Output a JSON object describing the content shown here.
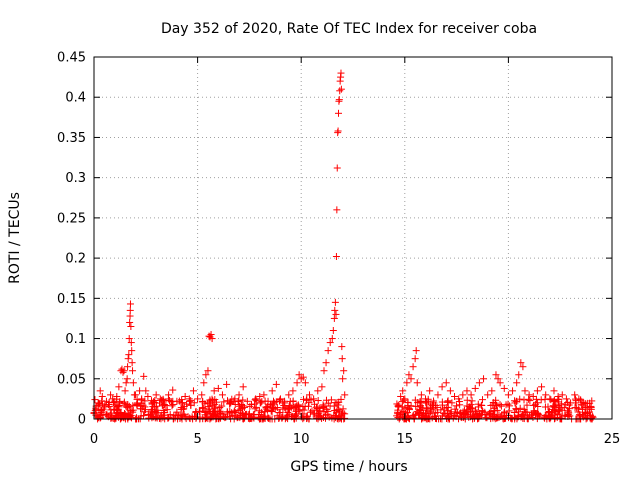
{
  "chart_data": {
    "type": "scatter",
    "title": "Day 352 of 2020, Rate Of TEC Index for receiver coba",
    "xlabel": "GPS time / hours",
    "ylabel": "ROTI / TECUs",
    "xlim": [
      0,
      25
    ],
    "ylim": [
      0,
      0.45
    ],
    "xticks": [
      0,
      5,
      10,
      15,
      20,
      25
    ],
    "yticks": [
      0,
      0.05,
      0.1,
      0.15,
      0.2,
      0.25,
      0.3,
      0.35,
      0.4,
      0.45
    ],
    "xtick_labels": [
      "0",
      "5",
      "10",
      "15",
      "20",
      "25"
    ],
    "ytick_labels": [
      "0",
      "0.05",
      "0.1",
      "0.15",
      "0.2",
      "0.25",
      "0.3",
      "0.35",
      "0.4",
      "0.45"
    ],
    "grid": true,
    "marker": "+",
    "color": "#ff0000",
    "series": [
      {
        "name": "ROTI",
        "points": [
          [
            0.1,
            0.012
          ],
          [
            0.2,
            0.02
          ],
          [
            0.3,
            0.035
          ],
          [
            0.4,
            0.028
          ],
          [
            0.5,
            0.015
          ],
          [
            0.6,
            0.022
          ],
          [
            0.7,
            0.018
          ],
          [
            0.8,
            0.03
          ],
          [
            0.9,
            0.025
          ],
          [
            1.0,
            0.012
          ],
          [
            1.1,
            0.028
          ],
          [
            1.2,
            0.04
          ],
          [
            1.3,
            0.06
          ],
          [
            1.35,
            0.062
          ],
          [
            1.4,
            0.058
          ],
          [
            1.45,
            0.06
          ],
          [
            1.5,
            0.035
          ],
          [
            1.55,
            0.045
          ],
          [
            1.6,
            0.05
          ],
          [
            1.62,
            0.065
          ],
          [
            1.65,
            0.075
          ],
          [
            1.68,
            0.08
          ],
          [
            1.7,
            0.1
          ],
          [
            1.72,
            0.12
          ],
          [
            1.74,
            0.128
          ],
          [
            1.75,
            0.135
          ],
          [
            1.76,
            0.143
          ],
          [
            1.78,
            0.115
          ],
          [
            1.8,
            0.095
          ],
          [
            1.82,
            0.085
          ],
          [
            1.84,
            0.07
          ],
          [
            1.86,
            0.06
          ],
          [
            1.9,
            0.045
          ],
          [
            1.95,
            0.03
          ],
          [
            2.0,
            0.03
          ],
          [
            2.1,
            0.02
          ],
          [
            2.2,
            0.035
          ],
          [
            2.3,
            0.025
          ],
          [
            2.4,
            0.053
          ],
          [
            2.5,
            0.035
          ],
          [
            2.6,
            0.028
          ],
          [
            2.8,
            0.02
          ],
          [
            3.0,
            0.03
          ],
          [
            3.2,
            0.025
          ],
          [
            3.4,
            0.018
          ],
          [
            3.6,
            0.03
          ],
          [
            3.8,
            0.036
          ],
          [
            4.0,
            0.022
          ],
          [
            4.2,
            0.02
          ],
          [
            4.4,
            0.028
          ],
          [
            4.6,
            0.025
          ],
          [
            4.8,
            0.035
          ],
          [
            5.0,
            0.025
          ],
          [
            5.2,
            0.03
          ],
          [
            5.3,
            0.045
          ],
          [
            5.4,
            0.055
          ],
          [
            5.5,
            0.06
          ],
          [
            5.55,
            0.103
          ],
          [
            5.6,
            0.102
          ],
          [
            5.65,
            0.105
          ],
          [
            5.7,
            0.1
          ],
          [
            5.8,
            0.035
          ],
          [
            6.0,
            0.038
          ],
          [
            6.2,
            0.03
          ],
          [
            6.4,
            0.043
          ],
          [
            6.6,
            0.02
          ],
          [
            6.8,
            0.025
          ],
          [
            7.0,
            0.03
          ],
          [
            7.2,
            0.04
          ],
          [
            7.4,
            0.022
          ],
          [
            7.6,
            0.018
          ],
          [
            7.8,
            0.025
          ],
          [
            8.0,
            0.028
          ],
          [
            8.2,
            0.03
          ],
          [
            8.4,
            0.022
          ],
          [
            8.6,
            0.035
          ],
          [
            8.8,
            0.043
          ],
          [
            9.0,
            0.025
          ],
          [
            9.2,
            0.02
          ],
          [
            9.4,
            0.03
          ],
          [
            9.6,
            0.035
          ],
          [
            9.8,
            0.045
          ],
          [
            9.9,
            0.055
          ],
          [
            10.0,
            0.05
          ],
          [
            10.1,
            0.052
          ],
          [
            10.2,
            0.045
          ],
          [
            10.4,
            0.03
          ],
          [
            10.6,
            0.025
          ],
          [
            10.8,
            0.035
          ],
          [
            11.0,
            0.04
          ],
          [
            11.1,
            0.06
          ],
          [
            11.2,
            0.07
          ],
          [
            11.3,
            0.085
          ],
          [
            11.4,
            0.095
          ],
          [
            11.5,
            0.1
          ],
          [
            11.55,
            0.11
          ],
          [
            11.6,
            0.125
          ],
          [
            11.62,
            0.135
          ],
          [
            11.65,
            0.145
          ],
          [
            11.68,
            0.13
          ],
          [
            11.7,
            0.202
          ],
          [
            11.72,
            0.26
          ],
          [
            11.74,
            0.312
          ],
          [
            11.76,
            0.356
          ],
          [
            11.78,
            0.358
          ],
          [
            11.8,
            0.38
          ],
          [
            11.82,
            0.395
          ],
          [
            11.84,
            0.397
          ],
          [
            11.86,
            0.408
          ],
          [
            11.88,
            0.42
          ],
          [
            11.9,
            0.425
          ],
          [
            11.92,
            0.43
          ],
          [
            11.94,
            0.41
          ],
          [
            11.96,
            0.09
          ],
          [
            11.98,
            0.075
          ],
          [
            12.0,
            0.05
          ],
          [
            12.05,
            0.06
          ],
          [
            12.1,
            0.03
          ],
          [
            14.7,
            0.015
          ],
          [
            14.8,
            0.028
          ],
          [
            14.9,
            0.035
          ],
          [
            15.0,
            0.025
          ],
          [
            15.1,
            0.045
          ],
          [
            15.2,
            0.055
          ],
          [
            15.3,
            0.05
          ],
          [
            15.4,
            0.065
          ],
          [
            15.5,
            0.075
          ],
          [
            15.55,
            0.085
          ],
          [
            15.6,
            0.045
          ],
          [
            15.8,
            0.03
          ],
          [
            16.0,
            0.025
          ],
          [
            16.2,
            0.035
          ],
          [
            16.4,
            0.02
          ],
          [
            16.6,
            0.03
          ],
          [
            16.8,
            0.04
          ],
          [
            17.0,
            0.045
          ],
          [
            17.2,
            0.035
          ],
          [
            17.4,
            0.028
          ],
          [
            17.6,
            0.025
          ],
          [
            17.8,
            0.03
          ],
          [
            18.0,
            0.035
          ],
          [
            18.2,
            0.03
          ],
          [
            18.4,
            0.038
          ],
          [
            18.6,
            0.045
          ],
          [
            18.8,
            0.05
          ],
          [
            19.0,
            0.03
          ],
          [
            19.2,
            0.035
          ],
          [
            19.4,
            0.055
          ],
          [
            19.5,
            0.05
          ],
          [
            19.6,
            0.045
          ],
          [
            19.8,
            0.038
          ],
          [
            20.0,
            0.03
          ],
          [
            20.2,
            0.035
          ],
          [
            20.4,
            0.045
          ],
          [
            20.5,
            0.055
          ],
          [
            20.6,
            0.07
          ],
          [
            20.7,
            0.065
          ],
          [
            20.8,
            0.035
          ],
          [
            21.0,
            0.03
          ],
          [
            21.2,
            0.028
          ],
          [
            21.4,
            0.035
          ],
          [
            21.6,
            0.04
          ],
          [
            21.8,
            0.03
          ],
          [
            22.0,
            0.025
          ],
          [
            22.2,
            0.035
          ],
          [
            22.4,
            0.028
          ],
          [
            22.6,
            0.03
          ],
          [
            22.8,
            0.025
          ],
          [
            23.0,
            0.02
          ],
          [
            23.2,
            0.03
          ],
          [
            23.4,
            0.025
          ],
          [
            23.6,
            0.02
          ],
          [
            23.8,
            0.015
          ],
          [
            24.0,
            0.012
          ]
        ],
        "baseline_segments": [
          {
            "x_start": 0.0,
            "x_end": 12.2,
            "y_low": 0.0,
            "y_high": 0.025
          },
          {
            "x_start": 14.6,
            "x_end": 24.1,
            "y_low": 0.0,
            "y_high": 0.025
          }
        ]
      }
    ]
  }
}
